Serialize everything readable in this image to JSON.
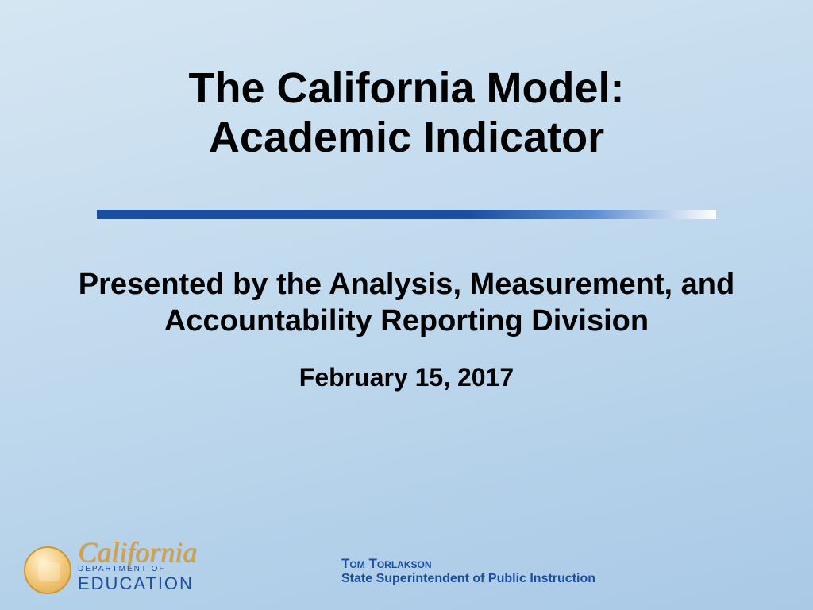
{
  "title_line1": "The California Model:",
  "title_line2": "Academic Indicator",
  "subtitle": "Presented by the Analysis, Measurement, and Accountability Reporting Division",
  "date": "February 15, 2017",
  "footer": {
    "logo_script": "California",
    "logo_dept": "DEPARTMENT OF",
    "logo_education": "EDUCATION",
    "name": "Tom Torlakson",
    "role": "State Superintendent of Public Instruction"
  },
  "colors": {
    "accent_blue": "#1a4fa0",
    "gold": "#e0a030",
    "bg_gradient_start": "#d5e6f2",
    "bg_gradient_end": "#a9c9e6"
  }
}
